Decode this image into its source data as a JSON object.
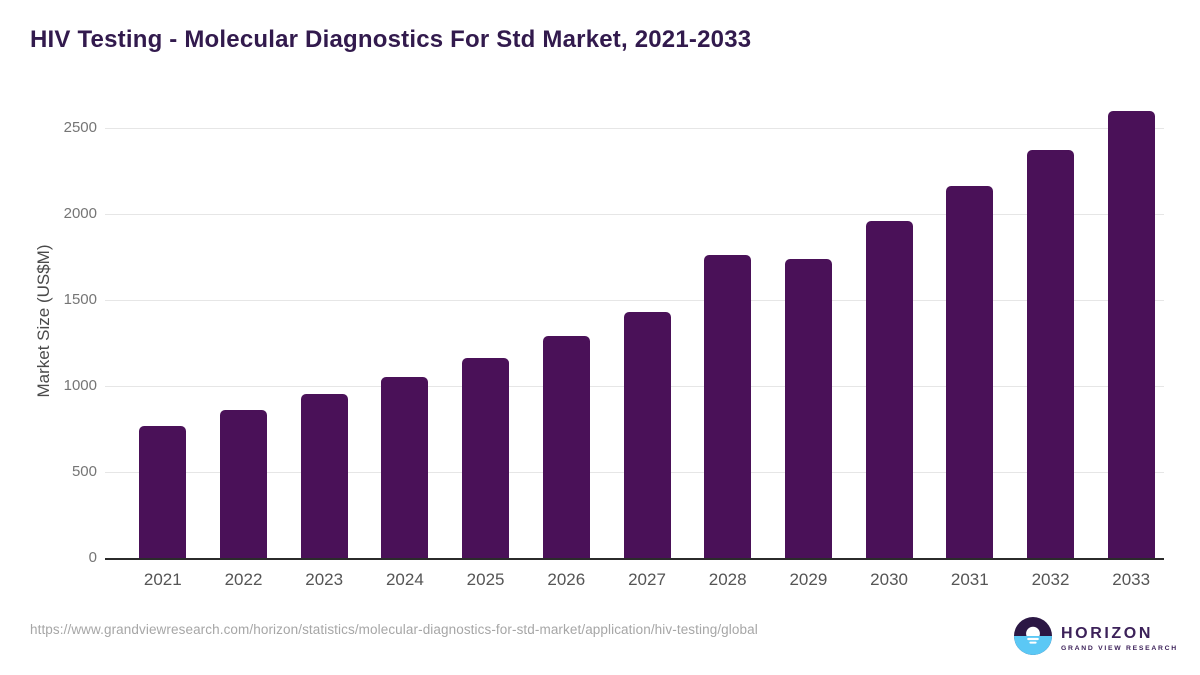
{
  "title": "HIV Testing - Molecular Diagnostics For Std Market, 2021-2033",
  "chart_data": {
    "type": "bar",
    "categories": [
      "2021",
      "2022",
      "2023",
      "2024",
      "2025",
      "2026",
      "2027",
      "2028",
      "2029",
      "2030",
      "2031",
      "2032",
      "2033"
    ],
    "values": [
      770,
      860,
      955,
      1050,
      1165,
      1290,
      1430,
      1760,
      1740,
      1960,
      2160,
      2370,
      2600
    ],
    "title": "HIV Testing - Molecular Diagnostics For Std Market, 2021-2033",
    "xlabel": "",
    "ylabel": "Market Size (US$M)",
    "ylim": [
      0,
      2700
    ],
    "yticks": [
      0,
      500,
      1000,
      1500,
      2000,
      2500
    ],
    "grid": true,
    "legend": "none",
    "bar_color": "#4a1158"
  },
  "colors": {
    "bar": "#4a1158",
    "title": "#321a4d",
    "gridline": "#e6e6e6",
    "axis_line": "#2b2b2b",
    "logo_navy": "#2b1744",
    "logo_blue": "#5bc8f5",
    "logo_text": "#3c2159"
  },
  "footer": {
    "source_url": "https://www.grandviewresearch.com/horizon/statistics/molecular-diagnostics-for-std-market/application/hiv-testing/global",
    "logo": {
      "brand": "HORIZON",
      "sub_brand": "GRAND VIEW RESEARCH"
    }
  }
}
